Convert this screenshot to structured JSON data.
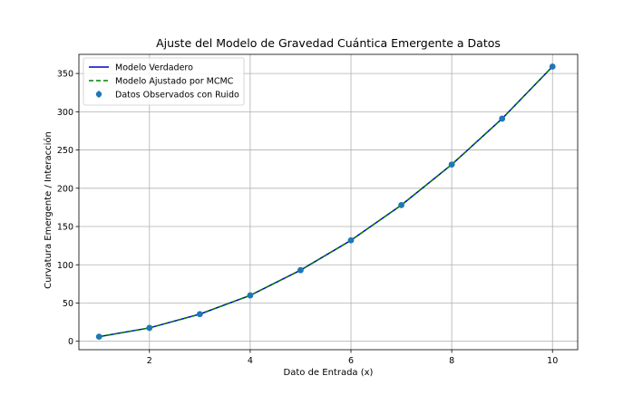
{
  "chart_data": {
    "type": "line",
    "title": "Ajuste del Modelo de Gravedad Cuántica Emergente a Datos",
    "xlabel": "Dato de Entrada (x)",
    "ylabel": "Curvatura Emergente / Interacción",
    "xlim": [
      0.6,
      10.5
    ],
    "ylim": [
      -11,
      375
    ],
    "xticks": [
      2,
      4,
      6,
      8,
      10
    ],
    "yticks": [
      0,
      50,
      100,
      150,
      200,
      250,
      300,
      350
    ],
    "grid": true,
    "legend_position": "top-left",
    "x": [
      1,
      2,
      3,
      4,
      5,
      6,
      7,
      8,
      9,
      10
    ],
    "series": [
      {
        "name": "Modelo Verdadero",
        "style": "solid",
        "color": "#0000cc",
        "values": [
          6,
          17.5,
          35.5,
          60,
          93,
          132,
          178,
          231,
          291,
          359
        ]
      },
      {
        "name": "Modelo Ajustado por MCMC",
        "style": "dashed",
        "color": "#008000",
        "values": [
          6,
          17.5,
          35.5,
          60,
          93,
          132,
          178,
          231,
          291,
          359
        ]
      },
      {
        "name": "Datos Observados con Ruido",
        "style": "errorbar-markers",
        "color": "#1f77b4",
        "values": [
          6,
          17.5,
          35.5,
          60,
          93,
          132,
          178,
          231,
          291,
          359
        ]
      }
    ]
  }
}
